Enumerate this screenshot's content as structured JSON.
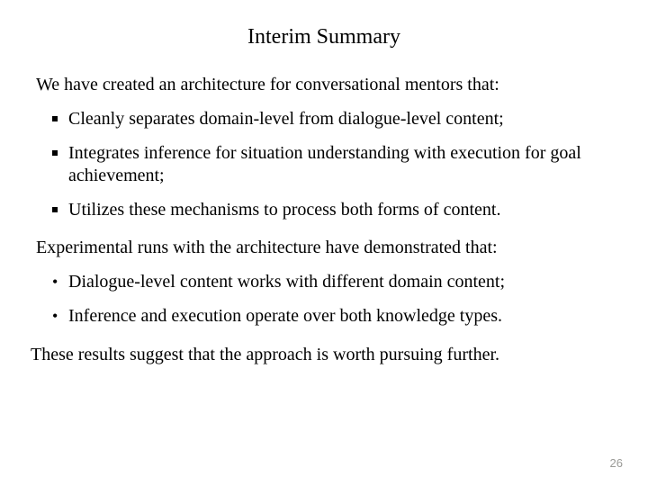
{
  "title": "Interim Summary",
  "intro1": "We have created an architecture for conversational mentors that:",
  "list1": {
    "item1": "Cleanly separates domain-level from dialogue-level content;",
    "item2": "Integrates inference for situation understanding with execution  for goal achievement;",
    "item3": "Utilizes these mechanisms to process both forms of content."
  },
  "intro2": "Experimental runs with the architecture have demonstrated that:",
  "list2": {
    "item1": "Dialogue-level content works with different domain content;",
    "item2": "Inference and execution operate over both knowledge types."
  },
  "closing": "These results suggest that the approach is worth pursuing further.",
  "page_number": "26",
  "colors": {
    "background": "#ffffff",
    "text": "#000000",
    "page_num": "#9a9a96"
  },
  "typography": {
    "title_fontsize": 24,
    "body_fontsize": 20,
    "page_num_fontsize": 13,
    "font_family": "Times New Roman"
  }
}
